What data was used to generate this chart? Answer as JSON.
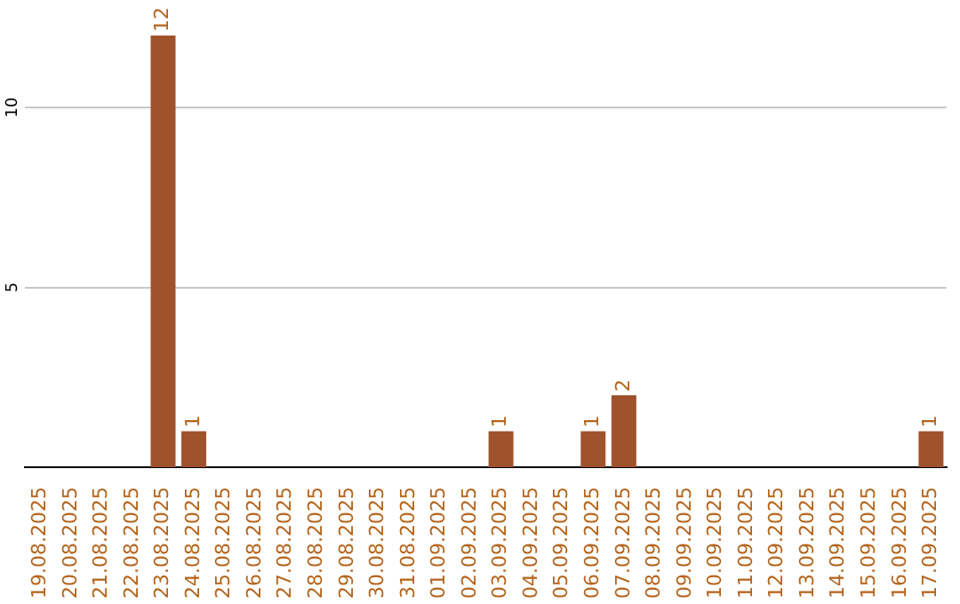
{
  "chart_data": {
    "type": "bar",
    "categories": [
      "19.08.2025",
      "20.08.2025",
      "21.08.2025",
      "22.08.2025",
      "23.08.2025",
      "24.08.2025",
      "25.08.2025",
      "26.08.2025",
      "27.08.2025",
      "28.08.2025",
      "29.08.2025",
      "30.08.2025",
      "31.08.2025",
      "01.09.2025",
      "02.09.2025",
      "03.09.2025",
      "04.09.2025",
      "05.09.2025",
      "06.09.2025",
      "07.09.2025",
      "08.09.2025",
      "09.09.2025",
      "10.09.2025",
      "11.09.2025",
      "12.09.2025",
      "13.09.2025",
      "14.09.2025",
      "15.09.2025",
      "16.09.2025",
      "17.09.2025"
    ],
    "values": [
      0,
      0,
      0,
      0,
      12,
      1,
      0,
      0,
      0,
      0,
      0,
      0,
      0,
      0,
      0,
      1,
      0,
      0,
      1,
      2,
      0,
      0,
      0,
      0,
      0,
      0,
      0,
      0,
      0,
      1
    ],
    "value_labels": [
      null,
      null,
      null,
      null,
      "12",
      "1",
      null,
      null,
      null,
      null,
      null,
      null,
      null,
      null,
      null,
      "1",
      null,
      null,
      "1",
      "2",
      null,
      null,
      null,
      null,
      null,
      null,
      null,
      null,
      null,
      "1"
    ],
    "color": "#a0522d",
    "ylim": [
      0,
      12
    ],
    "yticks": [
      5,
      10
    ],
    "grid": "y",
    "legend": false
  }
}
